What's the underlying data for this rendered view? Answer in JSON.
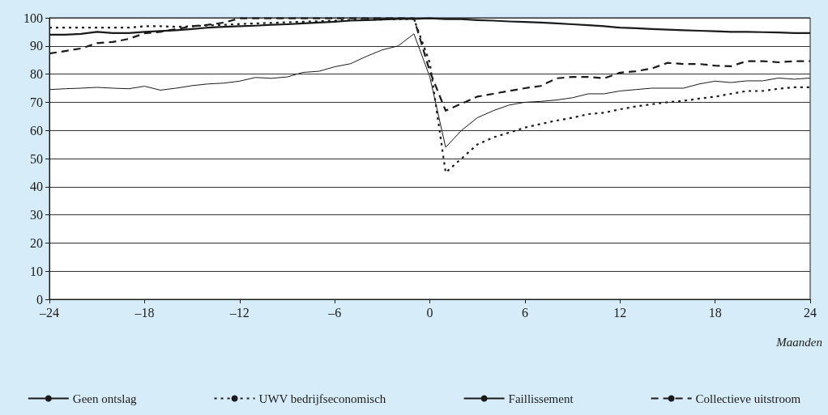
{
  "chart_data": {
    "type": "line",
    "xlabel": "Maanden",
    "x": [
      -24,
      -23,
      -22,
      -21,
      -20,
      -19,
      -18,
      -17,
      -16,
      -15,
      -14,
      -13,
      -12,
      -11,
      -10,
      -9,
      -8,
      -7,
      -6,
      -5,
      -4,
      -3,
      -2,
      -1,
      0,
      1,
      2,
      3,
      4,
      5,
      6,
      7,
      8,
      9,
      10,
      11,
      12,
      13,
      14,
      15,
      16,
      17,
      18,
      19,
      20,
      21,
      22,
      23,
      24
    ],
    "series": [
      {
        "name": "Geen ontslag",
        "color": "#1a1a1a",
        "line_style": "solid",
        "values": [
          94,
          94,
          94.3,
          95,
          94.6,
          94.6,
          95,
          95.3,
          95.6,
          96,
          96.5,
          96.8,
          97,
          97.2,
          97.5,
          97.7,
          98,
          98.3,
          98.6,
          99,
          99.2,
          99.4,
          99.6,
          99.6,
          99.8,
          99.5,
          99.5,
          99.2,
          99,
          98.7,
          98.5,
          98.3,
          98,
          97.7,
          97.4,
          97,
          96.5,
          96.3,
          96,
          95.8,
          95.6,
          95.4,
          95.2,
          95,
          95,
          94.9,
          94.8,
          94.6,
          94.6
        ]
      },
      {
        "name": "UWV bedrijfseconomisch",
        "color": "#1a1a1a",
        "line_style": "dotted",
        "values": [
          96.5,
          96.5,
          96.5,
          96.5,
          96.5,
          96.5,
          97,
          97,
          96.8,
          97,
          97.3,
          97.5,
          97.8,
          98,
          98.2,
          98.4,
          98.6,
          98.8,
          99,
          99.2,
          99.3,
          99.4,
          99.5,
          99.6,
          84,
          45,
          50,
          55,
          57.5,
          59.2,
          61,
          62.3,
          63.5,
          64.5,
          65.8,
          66.3,
          67.5,
          68.5,
          69.3,
          70,
          70.5,
          71.3,
          72,
          73,
          74,
          74,
          74.8,
          75.3,
          75.3
        ]
      },
      {
        "name": "Faillissement",
        "color": "#1a1a1a",
        "line_style": "solid",
        "values": [
          74.5,
          74.8,
          75,
          75.3,
          75,
          74.8,
          75.7,
          74.3,
          75,
          75.9,
          76.5,
          76.8,
          77.5,
          78.8,
          78.5,
          79,
          80.6,
          81,
          82.6,
          83.7,
          86.3,
          88.6,
          90,
          94.3,
          79,
          54,
          60,
          64.5,
          67,
          69,
          70,
          70.3,
          70.8,
          71.6,
          73,
          73,
          74,
          74.5,
          75,
          75,
          75,
          76.5,
          77.5,
          77,
          77.6,
          77.6,
          78.6,
          78.2,
          78.6
        ]
      },
      {
        "name": "Collectieve uitstroom",
        "color": "#1a1a1a",
        "line_style": "dashed",
        "values": [
          87.3,
          88.2,
          89.1,
          91,
          91.4,
          92.5,
          94.5,
          95,
          96,
          97,
          97.5,
          98.3,
          99.8,
          99.8,
          99.8,
          99.8,
          99.8,
          99.8,
          99.8,
          99.8,
          99.8,
          99.8,
          99.8,
          99.8,
          81,
          67,
          69.5,
          72,
          73,
          74,
          75,
          75.8,
          78.5,
          79,
          79,
          78.5,
          80.5,
          81,
          82,
          84,
          83.6,
          83.6,
          83,
          82.8,
          84.6,
          84.6,
          84.2,
          84.6,
          84.6
        ]
      }
    ],
    "xlim": [
      -24,
      24
    ],
    "xticks": [
      {
        "value": -24,
        "label": "–24"
      },
      {
        "value": -18,
        "label": "–18"
      },
      {
        "value": -12,
        "label": "–12"
      },
      {
        "value": -6,
        "label": "–6"
      },
      0,
      6,
      12,
      18,
      24
    ],
    "ylim": [
      0,
      100
    ],
    "yticks": [
      0,
      10,
      20,
      30,
      40,
      50,
      60,
      70,
      80,
      90,
      100
    ],
    "grid": "y",
    "legend": "bottom",
    "marker": "none"
  }
}
